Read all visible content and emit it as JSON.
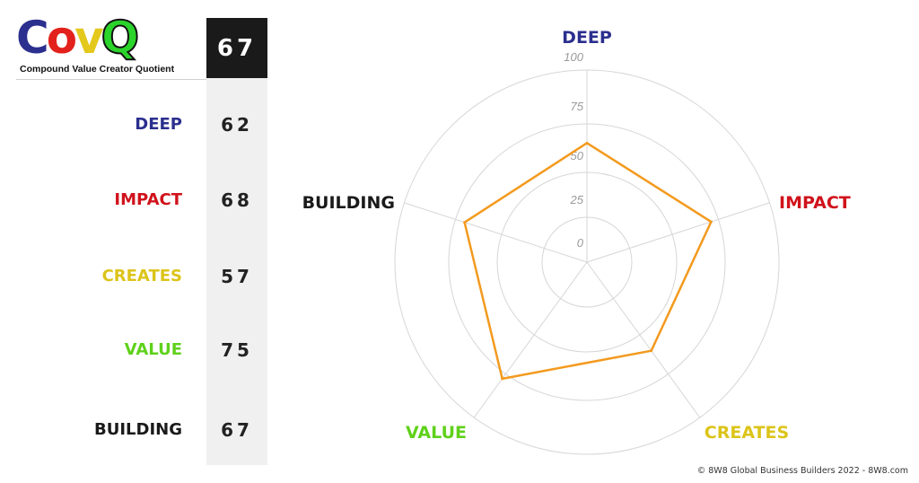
{
  "brand": {
    "logo_letters": [
      {
        "char": "C",
        "color": "#2b2f8e"
      },
      {
        "char": "o",
        "color": "#e3211c"
      },
      {
        "char": "v",
        "color": "#e4c81c"
      },
      {
        "char": "Q",
        "color": "#2bd42b"
      }
    ],
    "tagline": "Compound Value Creator Quotient"
  },
  "total_score": "67",
  "scores": [
    {
      "label": "DEEP",
      "value": "62",
      "color": "#2b2f8e"
    },
    {
      "label": "IMPACT",
      "value": "68",
      "color": "#d0121b"
    },
    {
      "label": "CREATES",
      "value": "57",
      "color": "#dcc41a"
    },
    {
      "label": "VALUE",
      "value": "75",
      "color": "#5fd11a"
    },
    {
      "label": "BUILDING",
      "value": "67",
      "color": "#1a1a1a"
    }
  ],
  "chart_data": {
    "type": "radar",
    "axes": [
      "DEEP",
      "IMPACT",
      "CREATES",
      "VALUE",
      "BUILDING"
    ],
    "axis_colors": [
      "#2b2f8e",
      "#d0121b",
      "#dcc41a",
      "#5fd11a",
      "#1a1a1a"
    ],
    "values": [
      62,
      68,
      57,
      75,
      67
    ],
    "ticks": [
      "0",
      "25",
      "50",
      "75",
      "100"
    ],
    "range": [
      0,
      100
    ],
    "series_color": "#f39a1e",
    "grid": "circular"
  },
  "footer": "© 8W8 Global Business Builders 2022 - 8W8.com"
}
